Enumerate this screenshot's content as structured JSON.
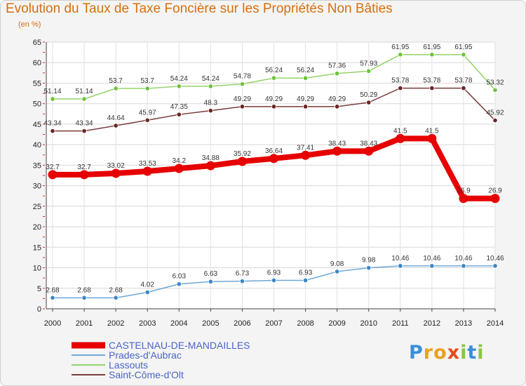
{
  "title": "Evolution du Taux de Taxe Foncière sur les Propriétés Non Bâties",
  "ylabel_text": "(en %)",
  "brand_letters": [
    "P",
    "r",
    "o",
    "x",
    "i",
    "t",
    "i"
  ],
  "brand_colors": [
    "#3a8fd8",
    "#e8a21d",
    "#e8a21d",
    "#e84a1c",
    "#8ac640",
    "#3a8fd8",
    "#8ac640"
  ],
  "chart_data": {
    "type": "line",
    "title": "Evolution du Taux de Taxe Foncière sur les Propriétés Non Bâties",
    "ylabel": "(en %)",
    "xlabel": "",
    "x": [
      "2000",
      "2001",
      "2002",
      "2003",
      "2004",
      "2005",
      "2006",
      "2007",
      "2008",
      "2009",
      "2010",
      "2011",
      "2012",
      "2013",
      "2014"
    ],
    "ylim": [
      0,
      65
    ],
    "yticks": [
      0,
      5,
      10,
      15,
      20,
      25,
      30,
      35,
      40,
      45,
      50,
      55,
      60,
      65
    ],
    "grid": true,
    "legend_position": "bottom-left",
    "series": [
      {
        "name": "CASTELNAU-DE-MANDAILLES",
        "color": "#e60000",
        "width": 8,
        "marker_color": "#e60000",
        "values": [
          32.7,
          32.7,
          33.02,
          33.53,
          34.2,
          34.88,
          35.92,
          36.64,
          37.41,
          38.43,
          38.43,
          41.5,
          41.5,
          26.9,
          26.9
        ],
        "labels": [
          "32.7",
          "32.7",
          "33.02",
          "33.53",
          "34.2",
          "34.88",
          "35.92",
          "36.64",
          "37.41",
          "38.43",
          "38.43",
          "41.5",
          "41.5",
          "26.9",
          "26.9"
        ]
      },
      {
        "name": "Prades-d'Aubrac",
        "color": "#6fa8d6",
        "width": 1.5,
        "marker_color": "#3c86c4",
        "values": [
          2.68,
          2.68,
          2.68,
          4.02,
          6.03,
          6.63,
          6.73,
          6.93,
          6.93,
          9.08,
          9.98,
          10.46,
          10.46,
          10.46,
          10.46
        ],
        "labels": [
          "2.68",
          "2.68",
          "2.68",
          "4.02",
          "6.03",
          "6.63",
          "6.73",
          "6.93",
          "6.93",
          "9.08",
          "9.98",
          "10.46",
          "10.46",
          "10.46",
          "10.46"
        ]
      },
      {
        "name": "Lassouts",
        "color": "#94d36a",
        "width": 1.5,
        "marker_color": "#6ec23c",
        "values": [
          51.14,
          51.14,
          53.7,
          53.7,
          54.24,
          54.24,
          54.78,
          56.24,
          56.24,
          57.36,
          57.93,
          61.95,
          61.95,
          61.95,
          53.32
        ],
        "labels": [
          "51.14",
          "51.14",
          "53.7",
          "53.7",
          "54.24",
          "54.24",
          "54.78",
          "56.24",
          "56.24",
          "57.36",
          "57.93",
          "61.95",
          "61.95",
          "61.95",
          "53.32"
        ]
      },
      {
        "name": "Saint-Côme-d'Olt",
        "color": "#7a3b3b",
        "width": 1.5,
        "marker_color": "#6a2424",
        "values": [
          43.34,
          43.34,
          44.64,
          45.97,
          47.35,
          48.3,
          49.29,
          49.29,
          49.29,
          49.29,
          50.29,
          53.78,
          53.78,
          53.78,
          45.92
        ],
        "labels": [
          "43.34",
          "43.34",
          "44.64",
          "45.97",
          "47.35",
          "48.3",
          "49.29",
          "49.29",
          "49.29",
          "49.29",
          "50.29",
          "53.78",
          "53.78",
          "53.78",
          "45.92"
        ]
      }
    ]
  }
}
